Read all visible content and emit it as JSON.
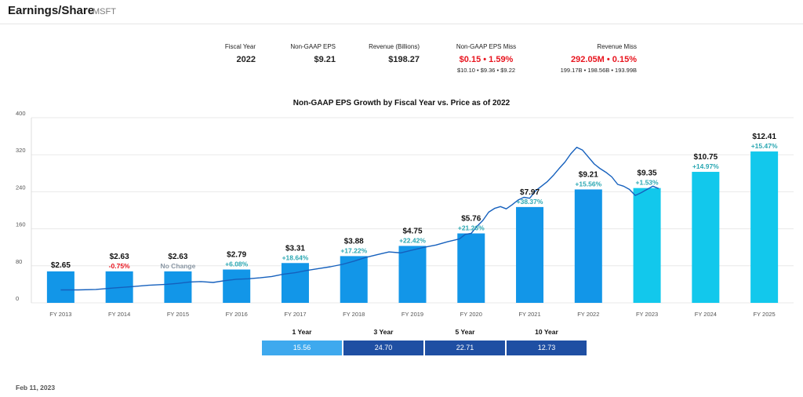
{
  "header": {
    "title": "Earnings/Share",
    "ticker": "MSFT"
  },
  "stats": {
    "fiscal_year": {
      "label": "Fiscal Year",
      "value": "2022"
    },
    "eps": {
      "label": "Non-GAAP EPS",
      "value": "$9.21"
    },
    "revenue": {
      "label": "Revenue (Billions)",
      "value": "$198.27"
    },
    "eps_miss": {
      "label": "Non-GAAP EPS Miss",
      "value": "$0.15  •  1.59%",
      "detail": "$10.10 • $9.36 • $9.22"
    },
    "revenue_miss": {
      "label": "Revenue Miss",
      "value": "292.05M • 0.15%",
      "detail": "199.17B • 198.56B • 193.99B"
    }
  },
  "chart_data": {
    "type": "bar",
    "title": "Non-GAAP EPS Growth by Fiscal Year vs. Price as of 2022",
    "y_ticks": [
      "0",
      "80",
      "160",
      "240",
      "320",
      "400"
    ],
    "ylim": [
      0,
      400
    ],
    "categories": [
      "FY 2013",
      "FY 2014",
      "FY 2015",
      "FY 2016",
      "FY 2017",
      "FY 2018",
      "FY 2019",
      "FY 2020",
      "FY 2021",
      "FY 2022",
      "FY 2023",
      "FY 2024",
      "FY 2025"
    ],
    "eps": [
      2.65,
      2.63,
      2.63,
      2.79,
      3.31,
      3.88,
      4.75,
      5.76,
      7.97,
      9.21,
      9.35,
      10.75,
      12.41
    ],
    "eps_labels": [
      "$2.65",
      "$2.63",
      "$2.63",
      "$2.79",
      "$3.31",
      "$3.88",
      "$4.75",
      "$5.76",
      "$7.97",
      "$9.21",
      "$9.35",
      "$10.75",
      "$12.41"
    ],
    "growth_labels": [
      "",
      "-0.75%",
      "No Change",
      "+6.08%",
      "+18.64%",
      "+17.22%",
      "+22.42%",
      "+21.26%",
      "+38.37%",
      "+15.56%",
      "+1.53%",
      "+14.97%",
      "+15.47%"
    ],
    "bar_values": [
      68,
      68,
      68,
      72,
      86,
      101,
      123,
      150,
      207,
      245,
      248,
      283,
      327
    ],
    "estimate_from_index": 10,
    "colors": {
      "actual": "#1296e8",
      "estimate": "#12c8ec",
      "price": "#1560bd"
    },
    "price_series": [
      [
        0.0,
        28
      ],
      [
        0.3,
        28
      ],
      [
        0.6,
        29
      ],
      [
        0.9,
        32
      ],
      [
        1.2,
        35
      ],
      [
        1.5,
        38
      ],
      [
        1.8,
        40
      ],
      [
        2.0,
        42
      ],
      [
        2.2,
        45
      ],
      [
        2.4,
        46
      ],
      [
        2.6,
        44
      ],
      [
        2.8,
        48
      ],
      [
        3.0,
        51
      ],
      [
        3.2,
        52
      ],
      [
        3.4,
        54
      ],
      [
        3.6,
        57
      ],
      [
        3.8,
        62
      ],
      [
        4.0,
        65
      ],
      [
        4.2,
        70
      ],
      [
        4.4,
        74
      ],
      [
        4.6,
        78
      ],
      [
        4.8,
        83
      ],
      [
        5.0,
        90
      ],
      [
        5.2,
        98
      ],
      [
        5.4,
        104
      ],
      [
        5.6,
        110
      ],
      [
        5.8,
        108
      ],
      [
        6.0,
        114
      ],
      [
        6.2,
        120
      ],
      [
        6.4,
        125
      ],
      [
        6.6,
        132
      ],
      [
        6.8,
        138
      ],
      [
        6.9,
        148
      ],
      [
        7.0,
        150
      ],
      [
        7.1,
        165
      ],
      [
        7.2,
        178
      ],
      [
        7.3,
        196
      ],
      [
        7.4,
        204
      ],
      [
        7.5,
        208
      ],
      [
        7.6,
        203
      ],
      [
        7.7,
        212
      ],
      [
        7.8,
        222
      ],
      [
        7.9,
        228
      ],
      [
        8.0,
        226
      ],
      [
        8.1,
        242
      ],
      [
        8.2,
        252
      ],
      [
        8.3,
        262
      ],
      [
        8.4,
        275
      ],
      [
        8.5,
        290
      ],
      [
        8.6,
        304
      ],
      [
        8.7,
        322
      ],
      [
        8.8,
        336
      ],
      [
        8.9,
        330
      ],
      [
        9.0,
        315
      ],
      [
        9.1,
        300
      ],
      [
        9.2,
        290
      ],
      [
        9.3,
        282
      ],
      [
        9.4,
        272
      ],
      [
        9.5,
        256
      ],
      [
        9.6,
        252
      ],
      [
        9.7,
        245
      ],
      [
        9.8,
        232
      ],
      [
        9.9,
        238
      ],
      [
        10.0,
        245
      ],
      [
        10.1,
        252
      ],
      [
        10.2,
        247
      ]
    ]
  },
  "performance": [
    {
      "label": "1 Year",
      "value": "15.56"
    },
    {
      "label": "3 Year",
      "value": "24.70"
    },
    {
      "label": "5 Year",
      "value": "22.71"
    },
    {
      "label": "10 Year",
      "value": "12.73"
    }
  ],
  "footer": {
    "date": "Feb 11, 2023"
  }
}
